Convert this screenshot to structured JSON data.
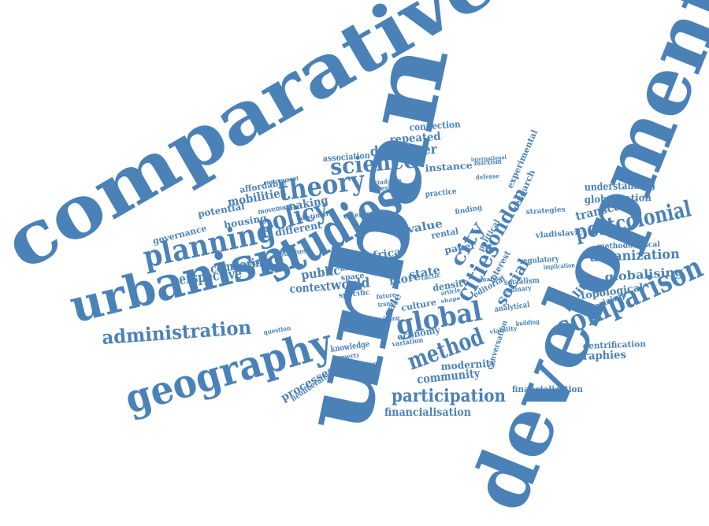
{
  "color": "#4a82b8",
  "words": [
    {
      "id": "comparative",
      "text": "comparative"
    },
    {
      "id": "urban",
      "text": "urban"
    },
    {
      "id": "development",
      "text": "development"
    },
    {
      "id": "studies",
      "text": "studies"
    },
    {
      "id": "urbanism",
      "text": "urbanism"
    },
    {
      "id": "geography",
      "text": "geography"
    },
    {
      "id": "planning",
      "text": "planning"
    },
    {
      "id": "theory",
      "text": "theory"
    },
    {
      "id": "science",
      "text": "science"
    },
    {
      "id": "policy",
      "text": "policy"
    },
    {
      "id": "global",
      "text": "global"
    },
    {
      "id": "comparison",
      "text": "comparison"
    },
    {
      "id": "postcolonial",
      "text": "postcolonial"
    },
    {
      "id": "administration",
      "text": "administration"
    },
    {
      "id": "method",
      "text": "method"
    },
    {
      "id": "cities",
      "text": "cities"
    },
    {
      "id": "london",
      "text": "london"
    },
    {
      "id": "city",
      "text": "city"
    },
    {
      "id": "social",
      "text": "social"
    },
    {
      "id": "participation",
      "text": "participation"
    },
    {
      "id": "perspective",
      "text": "perspective"
    },
    {
      "id": "comparing",
      "text": "comparing"
    },
    {
      "id": "public",
      "text": "public"
    },
    {
      "id": "context",
      "text": "context"
    },
    {
      "id": "world",
      "text": "world"
    },
    {
      "id": "developer",
      "text": "developer"
    },
    {
      "id": "repeated",
      "text": "repeated"
    },
    {
      "id": "connection",
      "text": "connection"
    },
    {
      "id": "instance",
      "text": "instance"
    },
    {
      "id": "mobilities",
      "text": "mobilities"
    },
    {
      "id": "making",
      "text": "making"
    },
    {
      "id": "different",
      "text": "different"
    },
    {
      "id": "housing",
      "text": "housing"
    },
    {
      "id": "potential",
      "text": "potential"
    },
    {
      "id": "governance",
      "text": "governance"
    },
    {
      "id": "affordable",
      "text": "affordable"
    },
    {
      "id": "association",
      "text": "association"
    },
    {
      "id": "understanding",
      "text": "understanding"
    },
    {
      "id": "globalization",
      "text": "globalization"
    },
    {
      "id": "transcalar",
      "text": "transcalar"
    },
    {
      "id": "urbanization",
      "text": "urbanization"
    },
    {
      "id": "methodological",
      "text": "methodological"
    },
    {
      "id": "vladislavic",
      "text": "vladislavic"
    },
    {
      "id": "globalising",
      "text": "globalising"
    },
    {
      "id": "topological",
      "text": "topological"
    },
    {
      "id": "theorizing",
      "text": "theorizing"
    },
    {
      "id": "politic",
      "text": "politic"
    },
    {
      "id": "gentrification",
      "text": "gentrification"
    },
    {
      "id": "geographies",
      "text": "geographies"
    },
    {
      "id": "financialization",
      "text": "financialization"
    },
    {
      "id": "financialisation",
      "text": "financialisation"
    },
    {
      "id": "community",
      "text": "community"
    },
    {
      "id": "modernity",
      "text": "modernity"
    },
    {
      "id": "economy",
      "text": "economy"
    },
    {
      "id": "processes",
      "text": "processes"
    },
    {
      "id": "neoliberalism",
      "text": "neoliberalism"
    },
    {
      "id": "knowledge",
      "text": "knowledge"
    },
    {
      "id": "more",
      "text": "more"
    },
    {
      "id": "state",
      "text": "state"
    },
    {
      "id": "density",
      "text": "density"
    },
    {
      "id": "paper",
      "text": "paper"
    },
    {
      "id": "africa",
      "text": "africa"
    },
    {
      "id": "value",
      "text": "value"
    },
    {
      "id": "rental",
      "text": "rental"
    },
    {
      "id": "interest",
      "text": "interest"
    },
    {
      "id": "political",
      "text": "political"
    },
    {
      "id": "culture",
      "text": "culture"
    },
    {
      "id": "scale",
      "text": "scale"
    },
    {
      "id": "experimental",
      "text": "experimental"
    },
    {
      "id": "research",
      "text": "research"
    },
    {
      "id": "strategies",
      "text": "strategies"
    },
    {
      "id": "regulatory",
      "text": "regulatory"
    },
    {
      "id": "socialism",
      "text": "socialism"
    },
    {
      "id": "analytical",
      "text": "analytical"
    },
    {
      "id": "editorial",
      "text": "editorial"
    },
    {
      "id": "conversation",
      "text": "conversation"
    },
    {
      "id": "movement",
      "text": "movement"
    },
    {
      "id": "business",
      "text": "business"
    },
    {
      "id": "model",
      "text": "model"
    },
    {
      "id": "finance",
      "text": "finance"
    },
    {
      "id": "space",
      "text": "space"
    },
    {
      "id": "specific",
      "text": "specific"
    },
    {
      "id": "post",
      "text": "post"
    },
    {
      "id": "practice",
      "text": "practice"
    },
    {
      "id": "finding",
      "text": "finding"
    },
    {
      "id": "oriented",
      "text": "oriented"
    },
    {
      "id": "distinctive",
      "text": "distinctive"
    },
    {
      "id": "environment",
      "text": "environment"
    },
    {
      "id": "resident",
      "text": "resident"
    },
    {
      "id": "ciudades",
      "text": "ciudades"
    },
    {
      "id": "marxism",
      "text": "marxism"
    },
    {
      "id": "defense",
      "text": "defense"
    },
    {
      "id": "international",
      "text": "international"
    },
    {
      "id": "shaping",
      "text": "shaping"
    },
    {
      "id": "variation",
      "text": "variation"
    },
    {
      "id": "viability",
      "text": "viability"
    },
    {
      "id": "future",
      "text": "future"
    },
    {
      "id": "transit",
      "text": "transit"
    },
    {
      "id": "example",
      "text": "example"
    },
    {
      "id": "property",
      "text": "property"
    },
    {
      "id": "contribution",
      "text": "contribution"
    },
    {
      "id": "implication",
      "text": "implication"
    },
    {
      "id": "ordinary",
      "text": "ordinary"
    },
    {
      "id": "building",
      "text": "building"
    },
    {
      "id": "analyse",
      "text": "analyse"
    },
    {
      "id": "question",
      "text": "question"
    },
    {
      "id": "tactic",
      "text": "tactic"
    },
    {
      "id": "article",
      "text": "article"
    },
    {
      "id": "shape",
      "text": "shape"
    }
  ]
}
